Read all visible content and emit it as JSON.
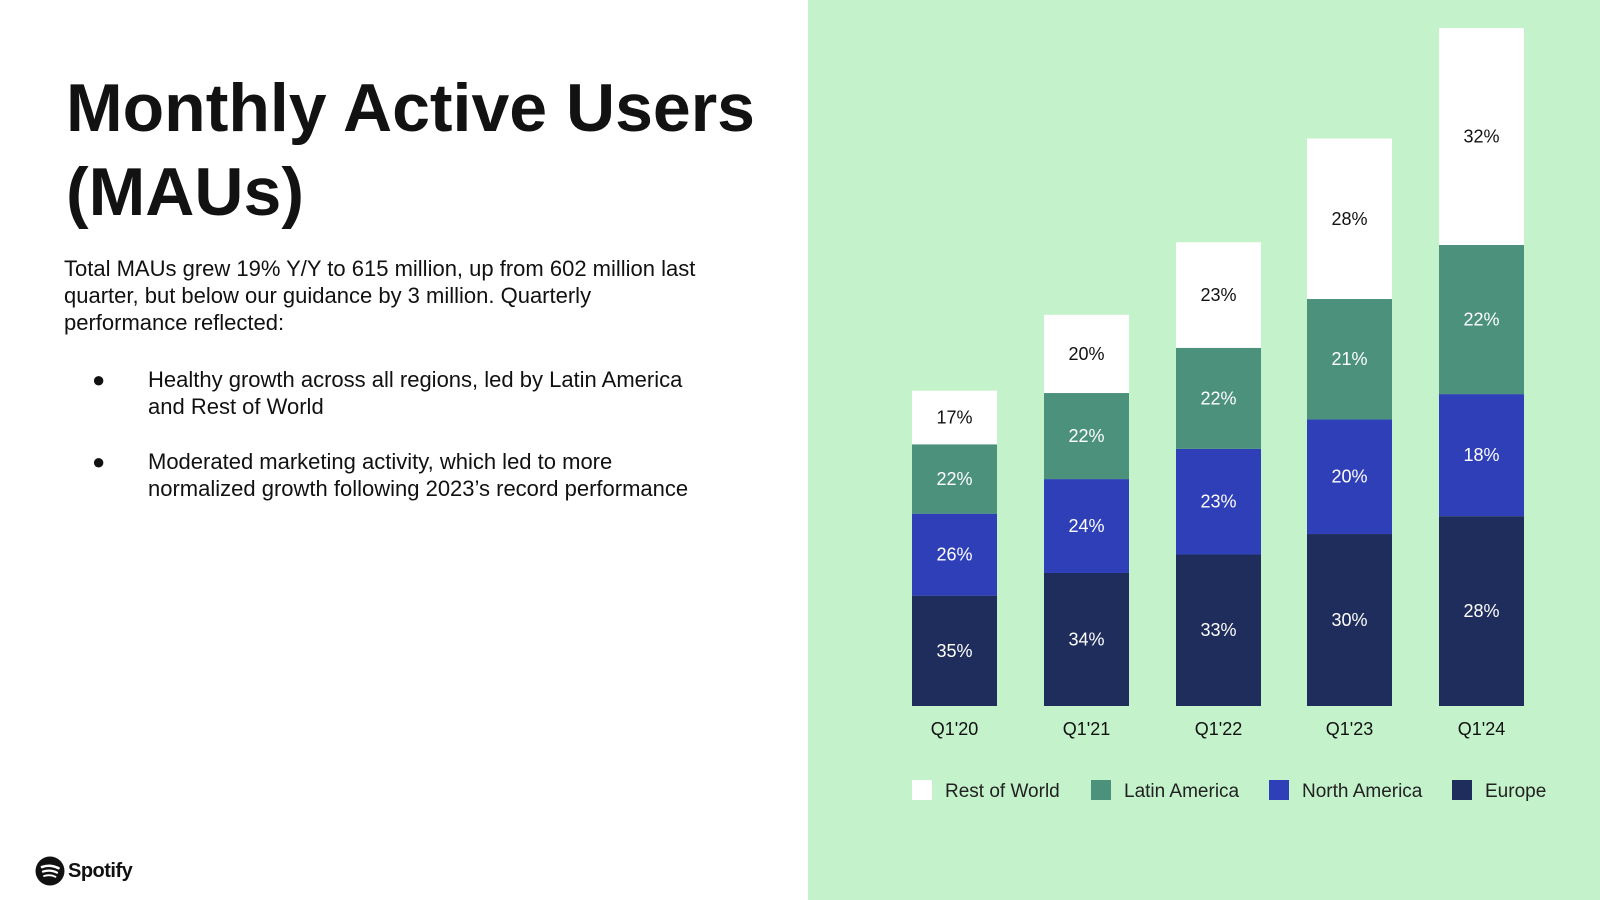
{
  "slide": {
    "title": "Monthly Active Users (MAUs)",
    "intro": "Total MAUs grew 19% Y/Y to 615 million, up from 602 million last quarter, but below our guidance by 3 million. Quarterly performance reflected:",
    "bullets": [
      "Healthy growth across all regions, led by Latin America and Rest of World",
      "Moderated marketing activity, which led to more normalized growth following 2023’s record performance"
    ],
    "bullet_glyph": "●",
    "logo_text": "Spotify",
    "panel_color": "#c4f2cb"
  },
  "chart_data": {
    "type": "bar",
    "stacked": true,
    "categories": [
      "Q1'20",
      "Q1'21",
      "Q1'22",
      "Q1'23",
      "Q1'24"
    ],
    "series": [
      {
        "name": "Europe",
        "color": "#1f2d5c",
        "values": [
          35,
          34,
          33,
          30,
          28
        ]
      },
      {
        "name": "North America",
        "color": "#2f3fb8",
        "values": [
          26,
          24,
          23,
          20,
          18
        ]
      },
      {
        "name": "Latin America",
        "color": "#4b917c",
        "values": [
          22,
          22,
          22,
          21,
          22
        ]
      },
      {
        "name": "Rest of World",
        "color": "#ffffff",
        "values": [
          17,
          20,
          23,
          28,
          32
        ]
      }
    ],
    "relative_bar_height": [
      0.465,
      0.577,
      0.684,
      0.837,
      1.0
    ],
    "legend_order": [
      "Rest of World",
      "Latin America",
      "North America",
      "Europe"
    ],
    "legend_position": "bottom",
    "grid": false,
    "y_axis": "none"
  }
}
